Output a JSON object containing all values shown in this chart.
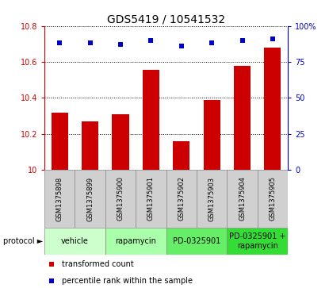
{
  "title": "GDS5419 / 10541532",
  "samples": [
    "GSM1375898",
    "GSM1375899",
    "GSM1375900",
    "GSM1375901",
    "GSM1375902",
    "GSM1375903",
    "GSM1375904",
    "GSM1375905"
  ],
  "bar_values": [
    10.32,
    10.27,
    10.31,
    10.555,
    10.16,
    10.39,
    10.58,
    10.68
  ],
  "dot_values": [
    88,
    88,
    87,
    90,
    86,
    88,
    90,
    91
  ],
  "bar_color": "#cc0000",
  "dot_color": "#0000cc",
  "ylim_left": [
    10.0,
    10.8
  ],
  "ylim_right": [
    0,
    100
  ],
  "yticks_left": [
    10.0,
    10.2,
    10.4,
    10.6,
    10.8
  ],
  "ytick_labels_left": [
    "10",
    "10.2",
    "10.4",
    "10.6",
    "10.8"
  ],
  "yticks_right": [
    0,
    25,
    50,
    75,
    100
  ],
  "ytick_labels_right": [
    "0",
    "25",
    "50",
    "75",
    "100%"
  ],
  "protocols": [
    {
      "label": "vehicle",
      "span": [
        0,
        2
      ],
      "color": "#ccffcc"
    },
    {
      "label": "rapamycin",
      "span": [
        2,
        4
      ],
      "color": "#aaffaa"
    },
    {
      "label": "PD-0325901",
      "span": [
        4,
        6
      ],
      "color": "#66ee66"
    },
    {
      "label": "PD-0325901 +\nrapamycin",
      "span": [
        6,
        8
      ],
      "color": "#33dd33"
    }
  ],
  "legend_items": [
    {
      "label": "transformed count",
      "color": "#cc0000"
    },
    {
      "label": "percentile rank within the sample",
      "color": "#0000cc"
    }
  ],
  "protocol_label": "protocol ►",
  "sample_box_color": "#d0d0d0",
  "bar_width": 0.55,
  "title_fontsize": 10,
  "tick_fontsize": 7,
  "sample_fontsize": 6,
  "proto_fontsize": 7,
  "legend_fontsize": 7
}
